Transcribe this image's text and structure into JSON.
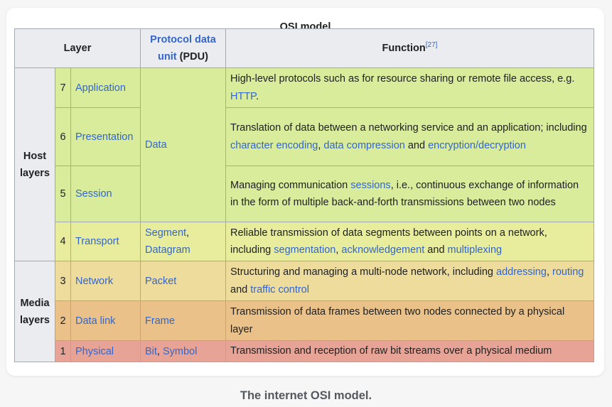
{
  "title": "OSI model",
  "headers": {
    "layer": "Layer",
    "pdu_link": "Protocol data unit",
    "pdu_abbr": "(PDU)",
    "function": "Function",
    "function_ref": "[27]"
  },
  "groups": {
    "host": "Host layers",
    "media": "Media layers"
  },
  "pdus": {
    "data": "Data",
    "segment": "Segment",
    "comma": ",",
    "datagram": "Datagram",
    "packet": "Packet",
    "frame": "Frame",
    "bit": "Bit",
    "symbol": "Symbol"
  },
  "layers": [
    {
      "number": "7",
      "name": "Application",
      "function": [
        "High-level protocols such as for resource sharing or remote file access, e.g. ",
        "HTTP",
        "."
      ]
    },
    {
      "number": "6",
      "name": "Presentation",
      "function": [
        "Translation of data between a networking service and an application; including ",
        "character encoding",
        ", ",
        "data compression",
        " and ",
        "encryption/decryption",
        ""
      ]
    },
    {
      "number": "5",
      "name": "Session",
      "function": [
        "Managing communication ",
        "sessions",
        ", i.e., continuous exchange of information in the form of multiple back-and-forth transmissions between two nodes"
      ]
    },
    {
      "number": "4",
      "name": "Transport",
      "function": [
        "Reliable transmission of data segments between points on a network, including ",
        "segmentation",
        ", ",
        "acknowledgement",
        " and ",
        "multiplexing",
        ""
      ]
    },
    {
      "number": "3",
      "name": "Network",
      "function": [
        "Structuring and managing a multi-node network, including ",
        "addressing",
        ", ",
        "routing",
        " and ",
        "traffic control",
        ""
      ]
    },
    {
      "number": "2",
      "name": "Data link",
      "function": [
        "Transmission of data frames between two nodes connected by a physical layer"
      ]
    },
    {
      "number": "1",
      "name": "Physical",
      "function": [
        "Transmission and reception of raw bit streams over a physical medium"
      ]
    }
  ],
  "colors": {
    "link": "#3366cc",
    "header_bg": "#eaecf0",
    "row_data": "#d8ec9c",
    "row_transport": "#e7ed9c",
    "row_network": "#eddc9c",
    "row_datalink": "#e9c189",
    "row_physical": "#e7a496"
  },
  "caption": "The internet OSI model."
}
